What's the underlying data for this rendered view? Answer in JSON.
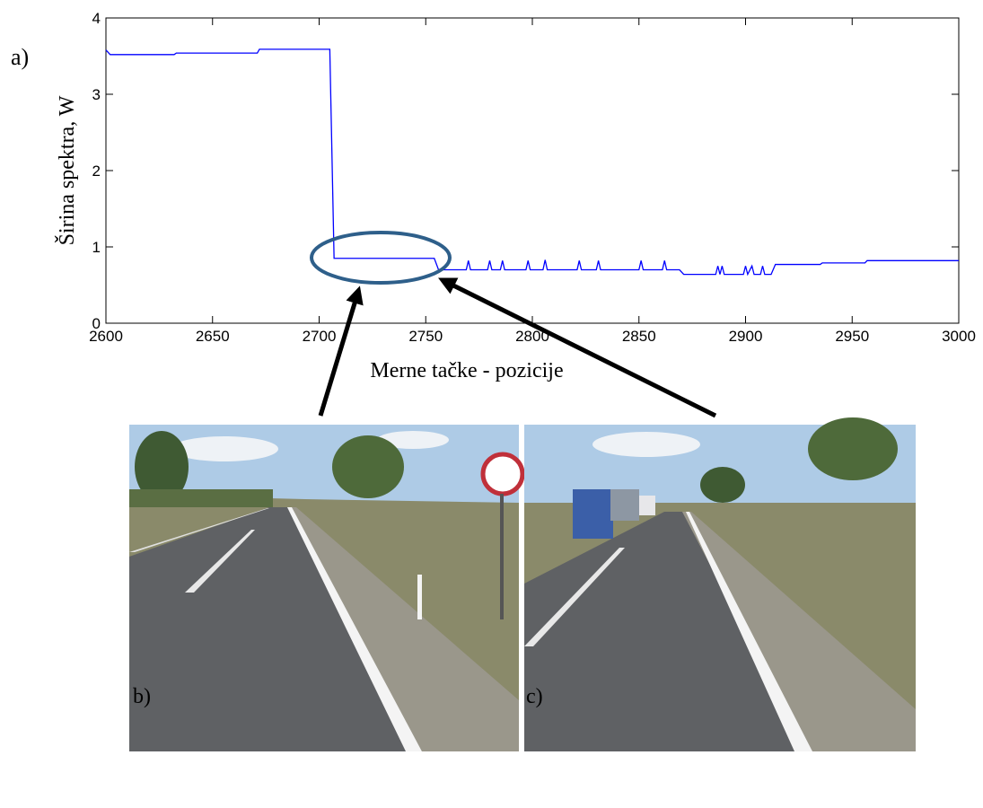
{
  "chart_data": {
    "type": "line",
    "ylabel": "Širina spektra, W",
    "xlabel": "Merne tačke - pozicije",
    "x": [
      2600,
      2602,
      2632,
      2633,
      2671,
      2672,
      2705,
      2707,
      2754,
      2756,
      2769,
      2770,
      2771,
      2779,
      2780,
      2781,
      2785,
      2786,
      2787,
      2797,
      2798,
      2799,
      2805,
      2806,
      2807,
      2821,
      2822,
      2823,
      2830,
      2831,
      2832,
      2850,
      2851,
      2852,
      2861,
      2862,
      2863,
      2869,
      2871,
      2886,
      2887,
      2888,
      2889,
      2890,
      2899,
      2900,
      2901,
      2903,
      2904,
      2907,
      2908,
      2909,
      2912,
      2914,
      2935,
      2936,
      2956,
      2957,
      3000
    ],
    "values": [
      3.58,
      3.52,
      3.52,
      3.54,
      3.54,
      3.59,
      3.59,
      0.85,
      0.85,
      0.7,
      0.7,
      0.82,
      0.7,
      0.7,
      0.82,
      0.7,
      0.7,
      0.82,
      0.7,
      0.7,
      0.82,
      0.7,
      0.7,
      0.83,
      0.7,
      0.7,
      0.82,
      0.7,
      0.7,
      0.82,
      0.7,
      0.7,
      0.82,
      0.7,
      0.7,
      0.82,
      0.7,
      0.7,
      0.64,
      0.64,
      0.75,
      0.64,
      0.75,
      0.64,
      0.64,
      0.75,
      0.64,
      0.75,
      0.64,
      0.64,
      0.75,
      0.64,
      0.64,
      0.77,
      0.77,
      0.79,
      0.79,
      0.82,
      0.82
    ],
    "color": "#0000ff",
    "xlim": [
      2600,
      3000
    ],
    "xticks": [
      2600,
      2650,
      2700,
      2750,
      2800,
      2850,
      2900,
      2950,
      3000
    ],
    "ylim": [
      0,
      4
    ],
    "yticks": [
      0,
      1,
      2,
      3,
      4
    ]
  },
  "panel_labels": [
    "a)",
    "b)",
    "c)"
  ]
}
